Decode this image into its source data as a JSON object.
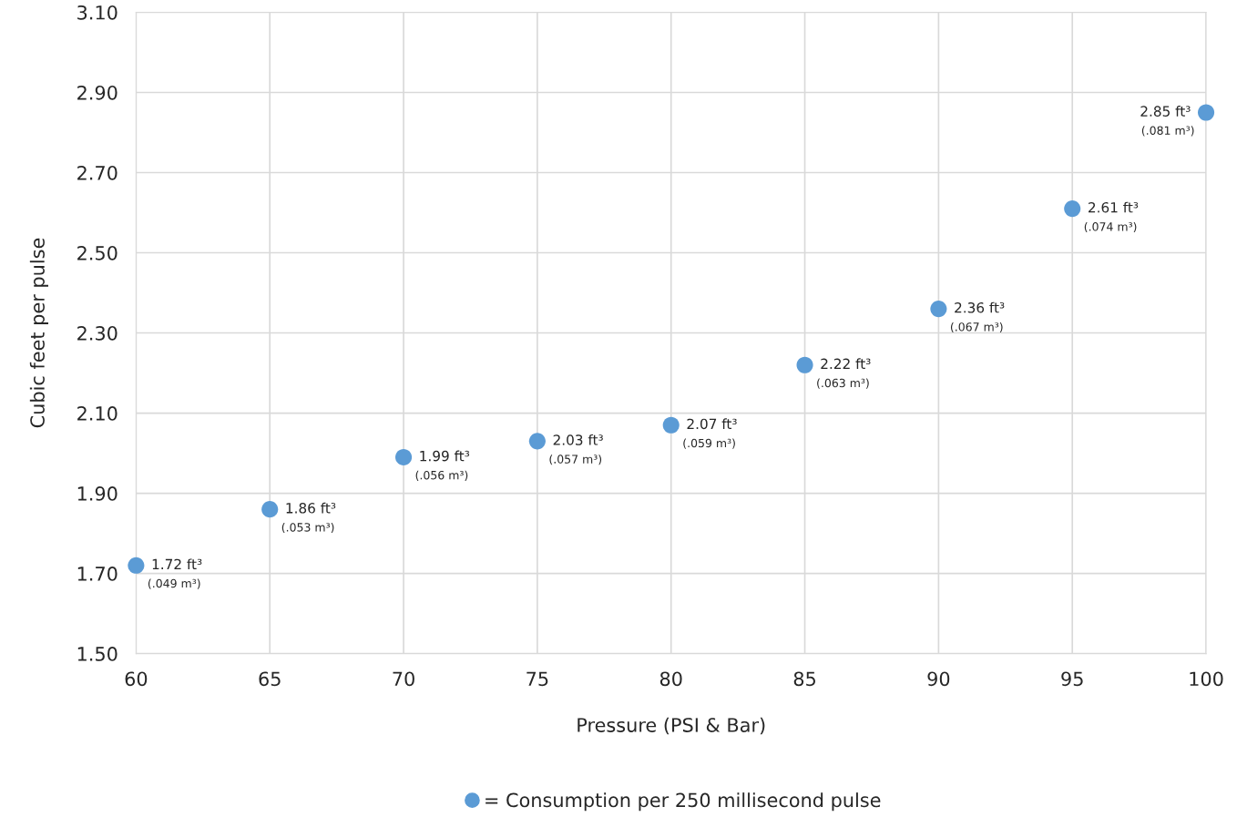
{
  "chart_data": {
    "type": "scatter",
    "xlabel": "Pressure (PSI & Bar)",
    "ylabel": "Cubic feet per pulse",
    "x": [
      60,
      65,
      70,
      75,
      80,
      85,
      90,
      95,
      100
    ],
    "series": [
      {
        "name": "= Consumption per 250 millisecond pulse",
        "color": "#5b9bd5",
        "values": [
          1.72,
          1.86,
          1.99,
          2.03,
          2.07,
          2.22,
          2.36,
          2.61,
          2.85
        ],
        "value_labels": [
          "1.72 ft³\n(.049 m³)",
          "1.86 ft³\n(.053 m³)",
          "1.99 ft³\n(.056 m³)",
          "2.03 ft³\n(.057 m³)",
          "2.07 ft³\n(.059 m³)",
          "2.22 ft³\n(.063 m³)",
          "2.36 ft³\n(.067 m³)",
          "2.61 ft³\n(.074 m³)",
          "2.85 ft³\n(.081 m³)"
        ]
      }
    ],
    "xlim": [
      60,
      100
    ],
    "xticks": [
      60,
      65,
      70,
      75,
      80,
      85,
      90,
      95,
      100
    ],
    "ylim": [
      1.5,
      3.1
    ],
    "yticks": [
      {
        "value": 1.5,
        "label": "1.50"
      },
      {
        "value": 1.7,
        "label": "1.70"
      },
      {
        "value": 1.9,
        "label": "1.90"
      },
      {
        "value": 2.1,
        "label": "2.10"
      },
      {
        "value": 2.3,
        "label": "2.30"
      },
      {
        "value": 2.5,
        "label": "2.50"
      },
      {
        "value": 2.7,
        "label": "2.70"
      },
      {
        "value": 2.9,
        "label": "2.90"
      },
      {
        "value": 3.1,
        "label": "3.10"
      }
    ],
    "grid": true,
    "legend": "bottom",
    "marker": "circle"
  }
}
